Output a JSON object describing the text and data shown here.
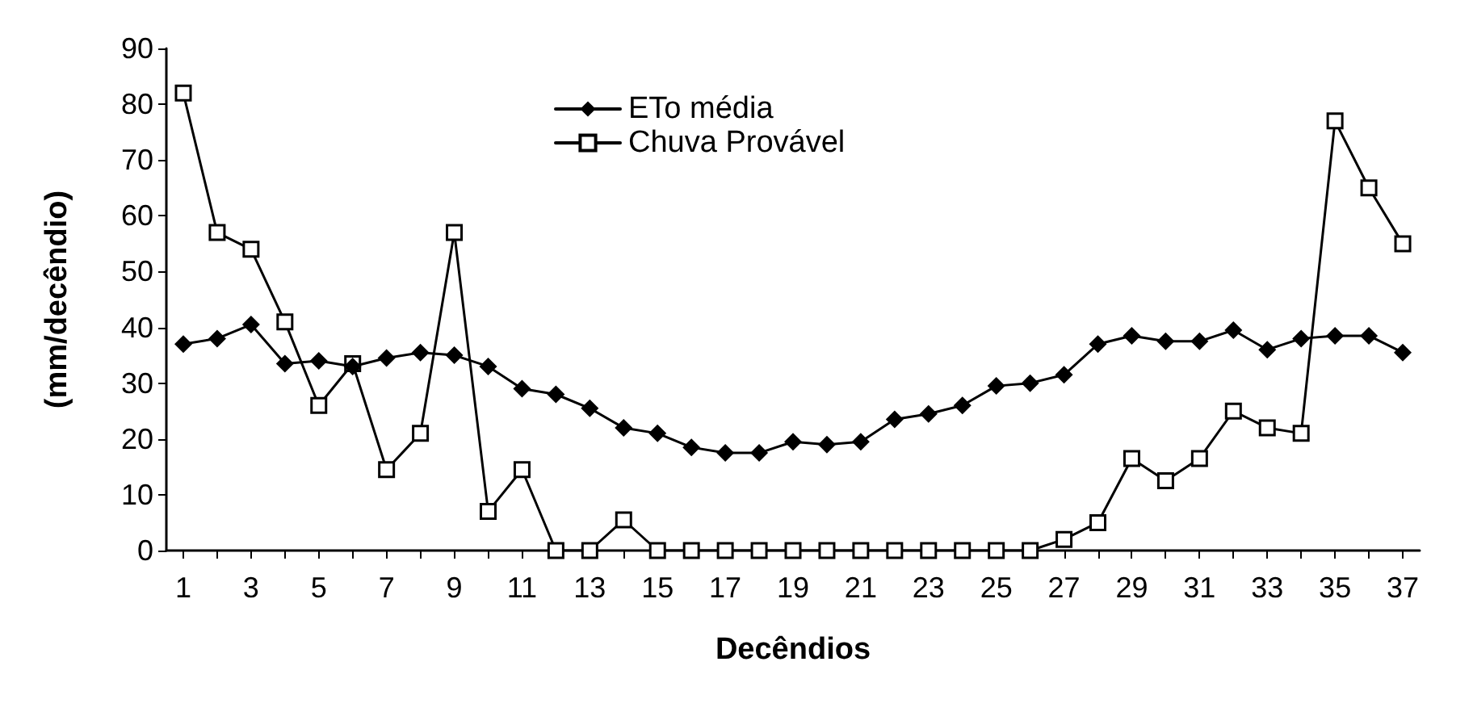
{
  "chart_data": {
    "type": "line",
    "xlabel": "Decêndios",
    "ylabel": "(mm/decêndio)",
    "x": [
      1,
      2,
      3,
      4,
      5,
      6,
      7,
      8,
      9,
      10,
      11,
      12,
      13,
      14,
      15,
      16,
      17,
      18,
      19,
      20,
      21,
      22,
      23,
      24,
      25,
      26,
      27,
      28,
      29,
      30,
      31,
      32,
      33,
      34,
      35,
      36,
      37
    ],
    "xlim": [
      0.5,
      37.5
    ],
    "xticks": [
      1,
      {
        "value": 2,
        "label": null
      },
      3,
      {
        "value": 4,
        "label": null
      },
      5,
      {
        "value": 6,
        "label": null
      },
      7,
      {
        "value": 8,
        "label": null
      },
      9,
      {
        "value": 10,
        "label": null
      },
      11,
      {
        "value": 12,
        "label": null
      },
      13,
      {
        "value": 14,
        "label": null
      },
      15,
      {
        "value": 16,
        "label": null
      },
      17,
      {
        "value": 18,
        "label": null
      },
      19,
      {
        "value": 20,
        "label": null
      },
      21,
      {
        "value": 22,
        "label": null
      },
      23,
      {
        "value": 24,
        "label": null
      },
      25,
      {
        "value": 26,
        "label": null
      },
      27,
      {
        "value": 28,
        "label": null
      },
      29,
      {
        "value": 30,
        "label": null
      },
      31,
      {
        "value": 32,
        "label": null
      },
      33,
      {
        "value": 34,
        "label": null
      },
      35,
      {
        "value": 36,
        "label": null
      },
      37
    ],
    "series": [
      {
        "name": "ETo média",
        "color": "#000000",
        "marker": "diamond",
        "values": [
          37,
          38,
          40.5,
          33.5,
          34,
          33,
          34.5,
          35.5,
          35,
          33,
          29,
          28,
          25.5,
          22,
          21,
          18.5,
          17.5,
          17.5,
          19.5,
          19,
          19.5,
          23.5,
          24.5,
          26,
          29.5,
          30,
          31.5,
          37,
          38.5,
          37.5,
          37.5,
          39.5,
          36,
          38,
          38.5,
          38.5,
          35.5
        ]
      },
      {
        "name": "Chuva Provável",
        "color": "#000000",
        "marker": "square",
        "values": [
          82,
          57,
          54,
          41,
          26,
          33.5,
          14.5,
          21,
          57,
          7,
          14.5,
          0,
          0,
          5.5,
          0,
          0,
          0,
          0,
          0,
          0,
          0,
          0,
          0,
          0,
          0,
          0,
          2,
          5,
          16.5,
          12.5,
          16.5,
          25,
          22,
          21,
          77,
          65,
          55
        ]
      }
    ],
    "ylim": [
      0,
      90
    ],
    "yticks": [
      0,
      10,
      20,
      30,
      40,
      50,
      60,
      70,
      80,
      90
    ],
    "grid": false,
    "legend": "top",
    "line_style": "solid"
  }
}
